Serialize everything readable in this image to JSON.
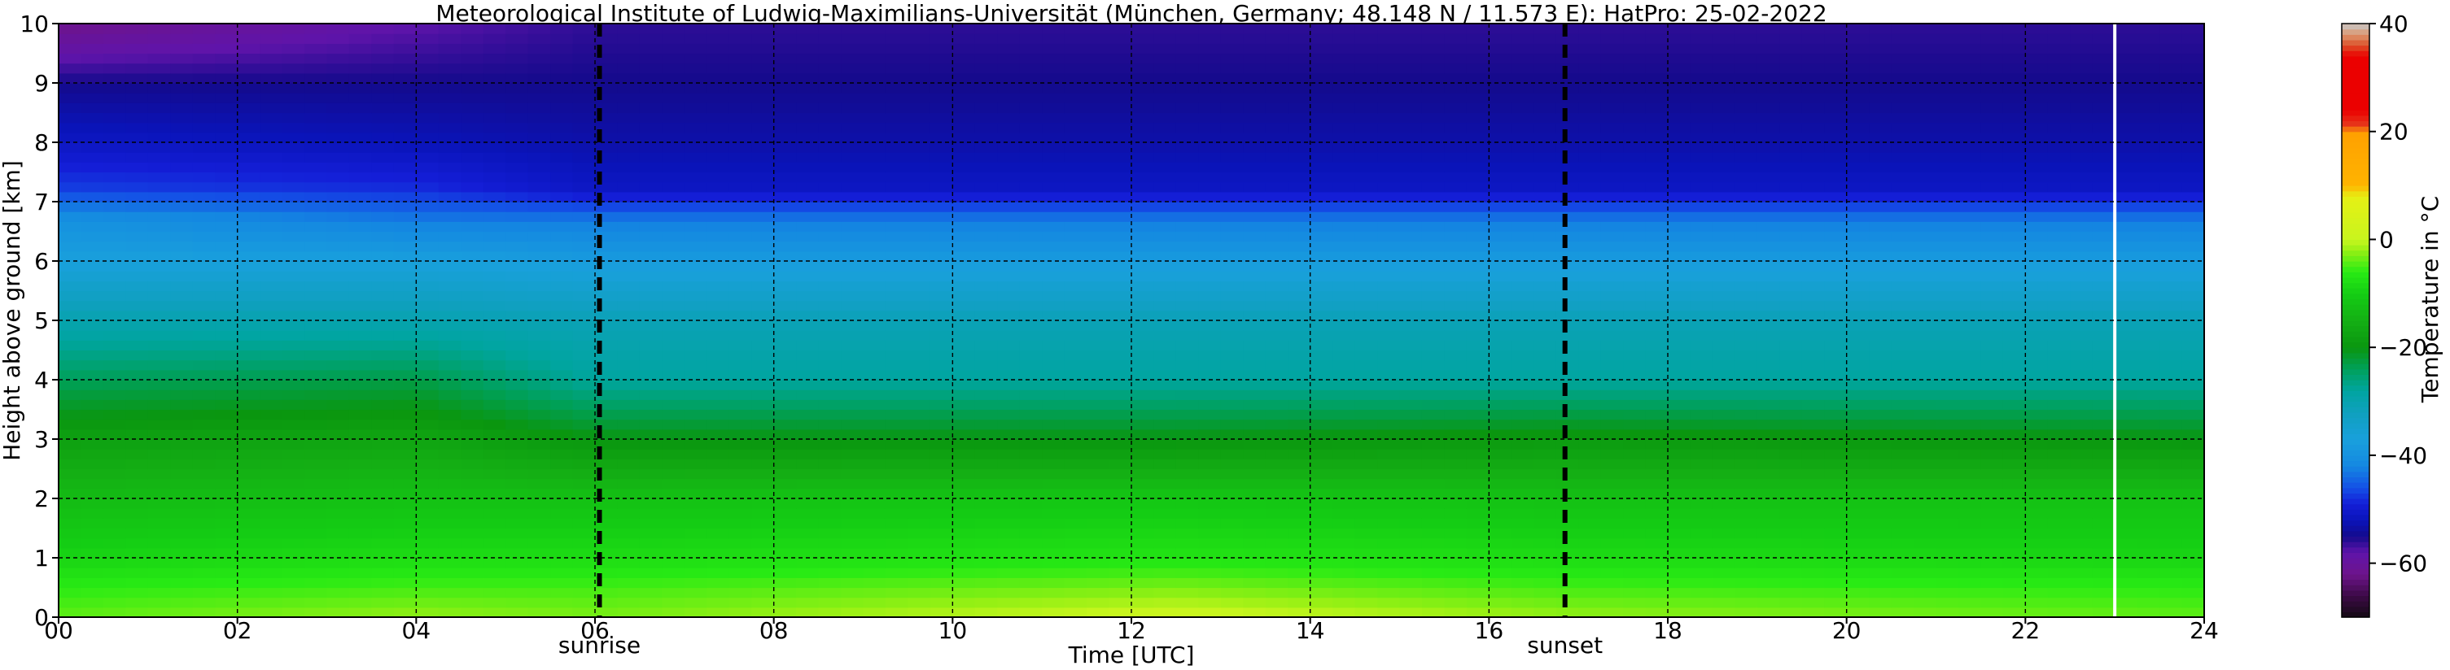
{
  "chart_data": {
    "type": "heatmap",
    "title": "Meteorological Institute of Ludwig-Maximilians-Universität (München, Germany; 48.148 N / 11.573 E):    HatPro: 25-02-2022",
    "xlabel": "Time [UTC]",
    "ylabel": "Height above ground [km]",
    "xlim": [
      0,
      24
    ],
    "ylim": [
      0,
      10
    ],
    "x_ticks": [
      "00",
      "02",
      "04",
      "06",
      "08",
      "10",
      "12",
      "14",
      "16",
      "18",
      "20",
      "22",
      "24"
    ],
    "y_ticks": [
      "0",
      "1",
      "2",
      "3",
      "4",
      "5",
      "6",
      "7",
      "8",
      "9",
      "10"
    ],
    "grid": true,
    "colorbar": {
      "label": "Temperature in °C",
      "range": [
        -70,
        40
      ],
      "ticks": [
        "-60",
        "-40",
        "-20",
        "0",
        "20",
        "40"
      ],
      "tick_values": [
        -60,
        -40,
        -20,
        0,
        20,
        40
      ]
    },
    "annotations": [
      {
        "label": "sunrise",
        "x": 6.05
      },
      {
        "label": "sunset",
        "x": 16.85
      }
    ],
    "missing_data_x": 23.0,
    "heights_km": [
      0,
      0.5,
      1,
      2,
      3,
      4,
      5,
      6,
      6.7,
      7.2,
      8,
      9,
      10
    ],
    "times_utc": [
      0,
      4,
      6.05,
      12.5,
      16.85,
      24
    ],
    "temperature_c": [
      [
        -4,
        -2,
        -3,
        1,
        -2,
        -4
      ],
      [
        -6,
        -5,
        -5,
        -3,
        -5,
        -6
      ],
      [
        -9,
        -8,
        -8,
        -7,
        -8,
        -9
      ],
      [
        -13,
        -12,
        -12,
        -11,
        -12,
        -12
      ],
      [
        -18,
        -17,
        -20,
        -20,
        -19,
        -20
      ],
      [
        -24,
        -23,
        -28,
        -28,
        -28,
        -28
      ],
      [
        -30,
        -30,
        -31,
        -31,
        -31,
        -31
      ],
      [
        -37,
        -37,
        -38,
        -38,
        -38,
        -38
      ],
      [
        -40,
        -43,
        -43,
        -43,
        -43,
        -43
      ],
      [
        -47,
        -48,
        -51,
        -51,
        -51,
        -51
      ],
      [
        -51,
        -52,
        -53,
        -53,
        -53,
        -53
      ],
      [
        -55,
        -55,
        -55,
        -55,
        -55,
        -55
      ],
      [
        -62,
        -58,
        -56,
        -56,
        -56,
        -56
      ]
    ]
  }
}
